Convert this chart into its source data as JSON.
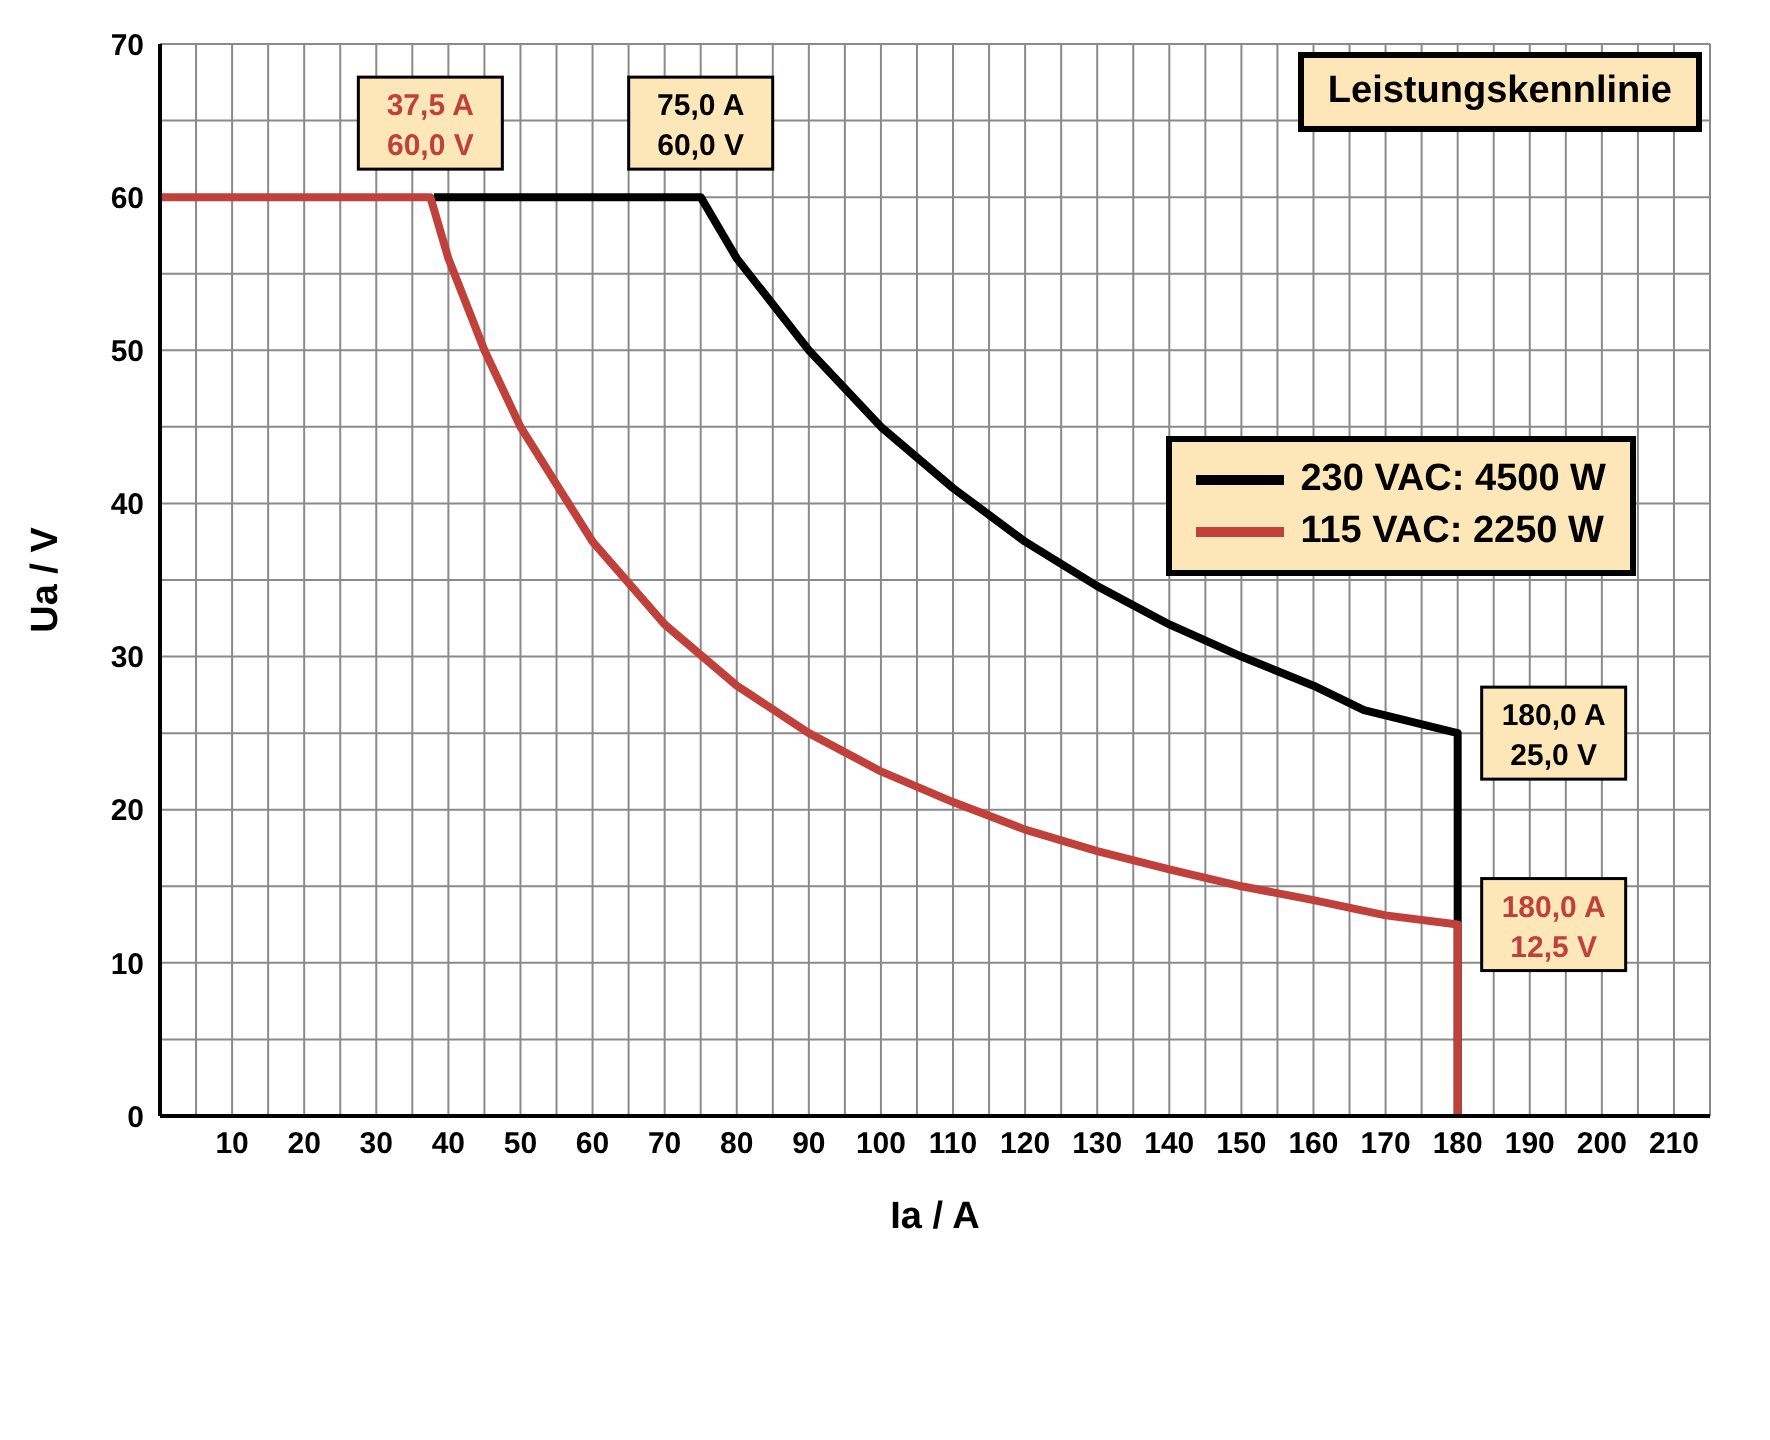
{
  "chart_data": {
    "type": "line",
    "title": "Leistungskennlinie",
    "xlabel": "Ia / A",
    "ylabel": "Ua / V",
    "xlim": [
      0,
      215
    ],
    "ylim": [
      0,
      70
    ],
    "xticks": [
      {
        "value": 5,
        "label": null
      },
      10,
      {
        "value": 15,
        "label": null
      },
      20,
      {
        "value": 25,
        "label": null
      },
      30,
      {
        "value": 35,
        "label": null
      },
      40,
      {
        "value": 45,
        "label": null
      },
      50,
      {
        "value": 55,
        "label": null
      },
      60,
      {
        "value": 65,
        "label": null
      },
      70,
      {
        "value": 75,
        "label": null
      },
      80,
      {
        "value": 85,
        "label": null
      },
      90,
      {
        "value": 95,
        "label": null
      },
      100,
      {
        "value": 105,
        "label": null
      },
      110,
      {
        "value": 115,
        "label": null
      },
      120,
      {
        "value": 125,
        "label": null
      },
      130,
      {
        "value": 135,
        "label": null
      },
      140,
      {
        "value": 145,
        "label": null
      },
      150,
      {
        "value": 155,
        "label": null
      },
      160,
      {
        "value": 165,
        "label": null
      },
      170,
      {
        "value": 175,
        "label": null
      },
      180,
      {
        "value": 185,
        "label": null
      },
      190,
      {
        "value": 195,
        "label": null
      },
      200,
      {
        "value": 205,
        "label": null
      },
      210
    ],
    "yticks": [
      0,
      {
        "value": 5,
        "label": null
      },
      10,
      {
        "value": 15,
        "label": null
      },
      20,
      {
        "value": 25,
        "label": null
      },
      30,
      {
        "value": 35,
        "label": null
      },
      40,
      {
        "value": 45,
        "label": null
      },
      50,
      {
        "value": 55,
        "label": null
      },
      60,
      {
        "value": 65,
        "label": null
      },
      70
    ],
    "grid": true,
    "legend": "top right",
    "marker": "none",
    "line_style": "solid",
    "series": [
      {
        "name": "230 VAC: 4500 W",
        "color": "#000000",
        "x": [
          38,
          75,
          80,
          90,
          100,
          110,
          120,
          130,
          140,
          150,
          160,
          167,
          180,
          180
        ],
        "values": [
          60,
          60,
          56,
          50,
          45,
          41,
          37.5,
          34.6,
          32.1,
          30,
          28.1,
          26.5,
          25,
          0
        ]
      },
      {
        "name": "115 VAC: 2250 W",
        "color": "#c0403c",
        "x": [
          0,
          37.5,
          40,
          45,
          50,
          60,
          70,
          80,
          90,
          100,
          110,
          120,
          130,
          140,
          150,
          160,
          170,
          180,
          180
        ],
        "values": [
          60,
          60,
          56,
          50,
          45,
          37.5,
          32.1,
          28.1,
          25,
          22.5,
          20.5,
          18.7,
          17.3,
          16.1,
          15,
          14.1,
          13.1,
          12.5,
          0
        ]
      }
    ],
    "annotations": [
      {
        "text": "37,5 A\n60,0 V",
        "x": 37.5,
        "y": 60
      },
      {
        "text": "75,0 A\n60,0 V",
        "x": 75,
        "y": 60
      },
      {
        "text": "180,0 A\n25,0 V",
        "x": 180,
        "y": 25
      },
      {
        "text": "180,0 A\n12,5 V",
        "x": 180,
        "y": 12.5
      }
    ]
  }
}
